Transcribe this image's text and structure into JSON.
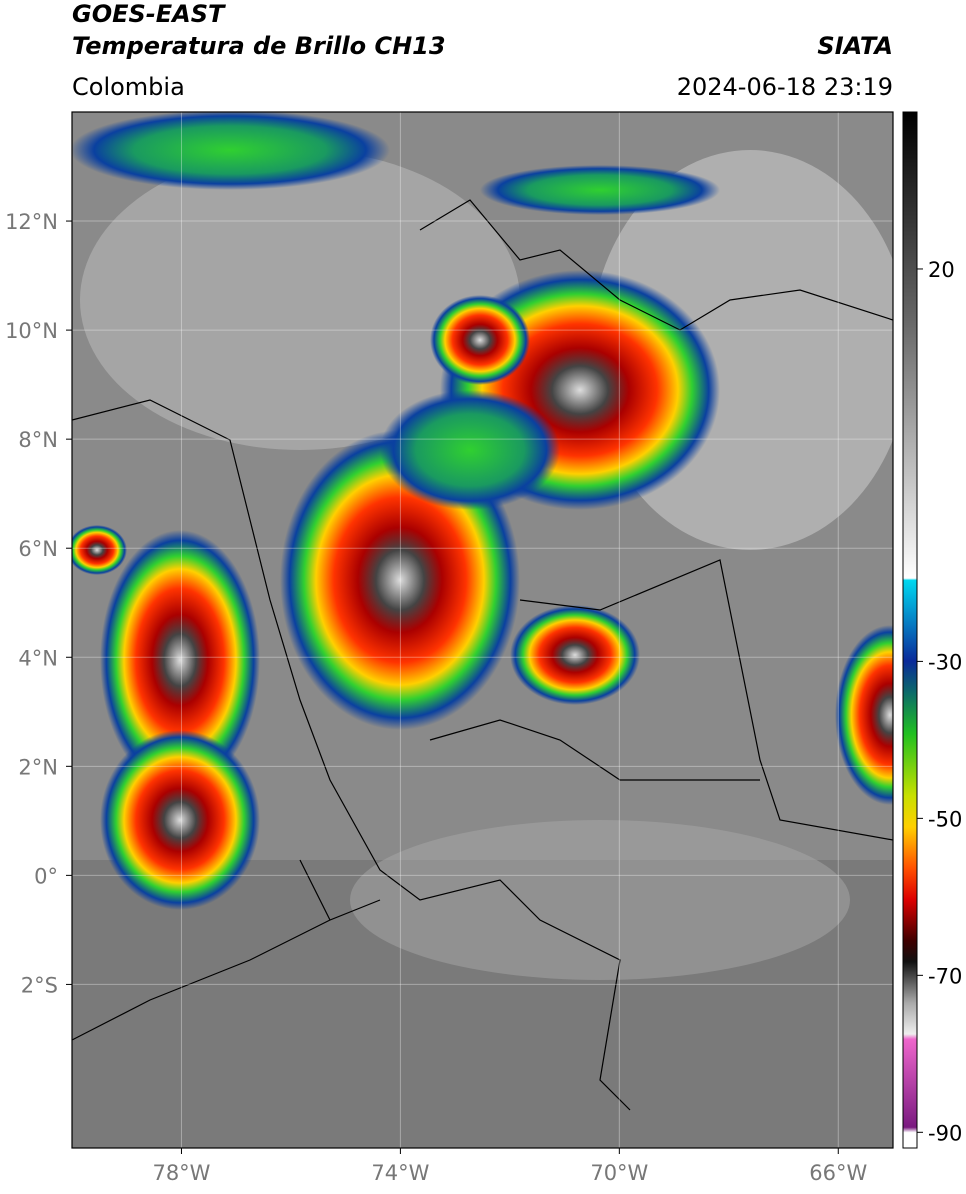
{
  "header": {
    "title": "GOES-EAST",
    "subtitle": "Temperatura de Brillo CH13",
    "source": "SIATA",
    "region": "Colombia",
    "datetime": "2024-06-18 23:19"
  },
  "map": {
    "xlim": [
      -80,
      -65
    ],
    "ylim": [
      -5,
      14
    ],
    "xticks": [
      {
        "value": -78,
        "label": "78°W"
      },
      {
        "value": -74,
        "label": "74°W"
      },
      {
        "value": -70,
        "label": "70°W"
      },
      {
        "value": -66,
        "label": "66°W"
      }
    ],
    "yticks": [
      {
        "value": 12,
        "label": "12°N"
      },
      {
        "value": 10,
        "label": "10°N"
      },
      {
        "value": 8,
        "label": "8°N"
      },
      {
        "value": 6,
        "label": "6°N"
      },
      {
        "value": 4,
        "label": "4°N"
      },
      {
        "value": 2,
        "label": "2°N"
      },
      {
        "value": 0,
        "label": "0°"
      },
      {
        "value": -2,
        "label": "2°S"
      }
    ],
    "grid": true
  },
  "colorbar": {
    "lim": [
      -92,
      40
    ],
    "ticks": [
      20,
      -30,
      -50,
      -70,
      -90
    ]
  }
}
